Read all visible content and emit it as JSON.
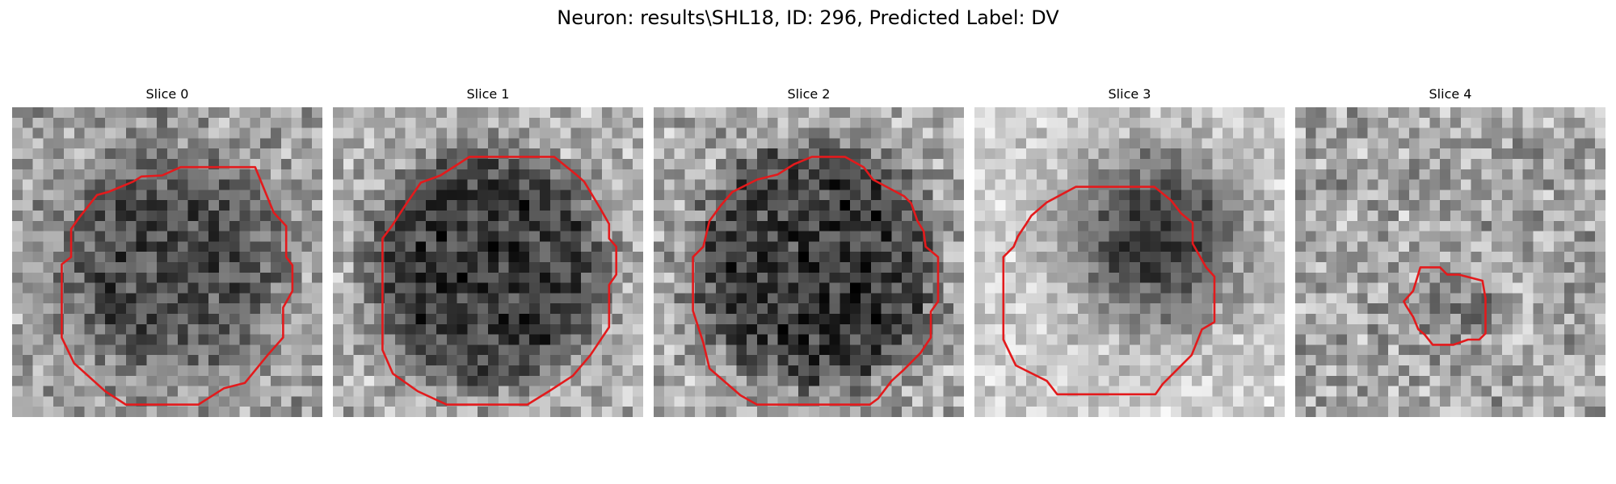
{
  "figure": {
    "title": "Neuron: results\\SHL18, ID: 296, Predicted Label: DV"
  },
  "slices": [
    {
      "label": "Slice 0",
      "contour_color": "#e31a1c"
    },
    {
      "label": "Slice 1",
      "contour_color": "#e31a1c"
    },
    {
      "label": "Slice 2",
      "contour_color": "#e31a1c"
    },
    {
      "label": "Slice 3",
      "contour_color": "#e31a1c"
    },
    {
      "label": "Slice 4",
      "contour_color": "#e31a1c"
    }
  ]
}
